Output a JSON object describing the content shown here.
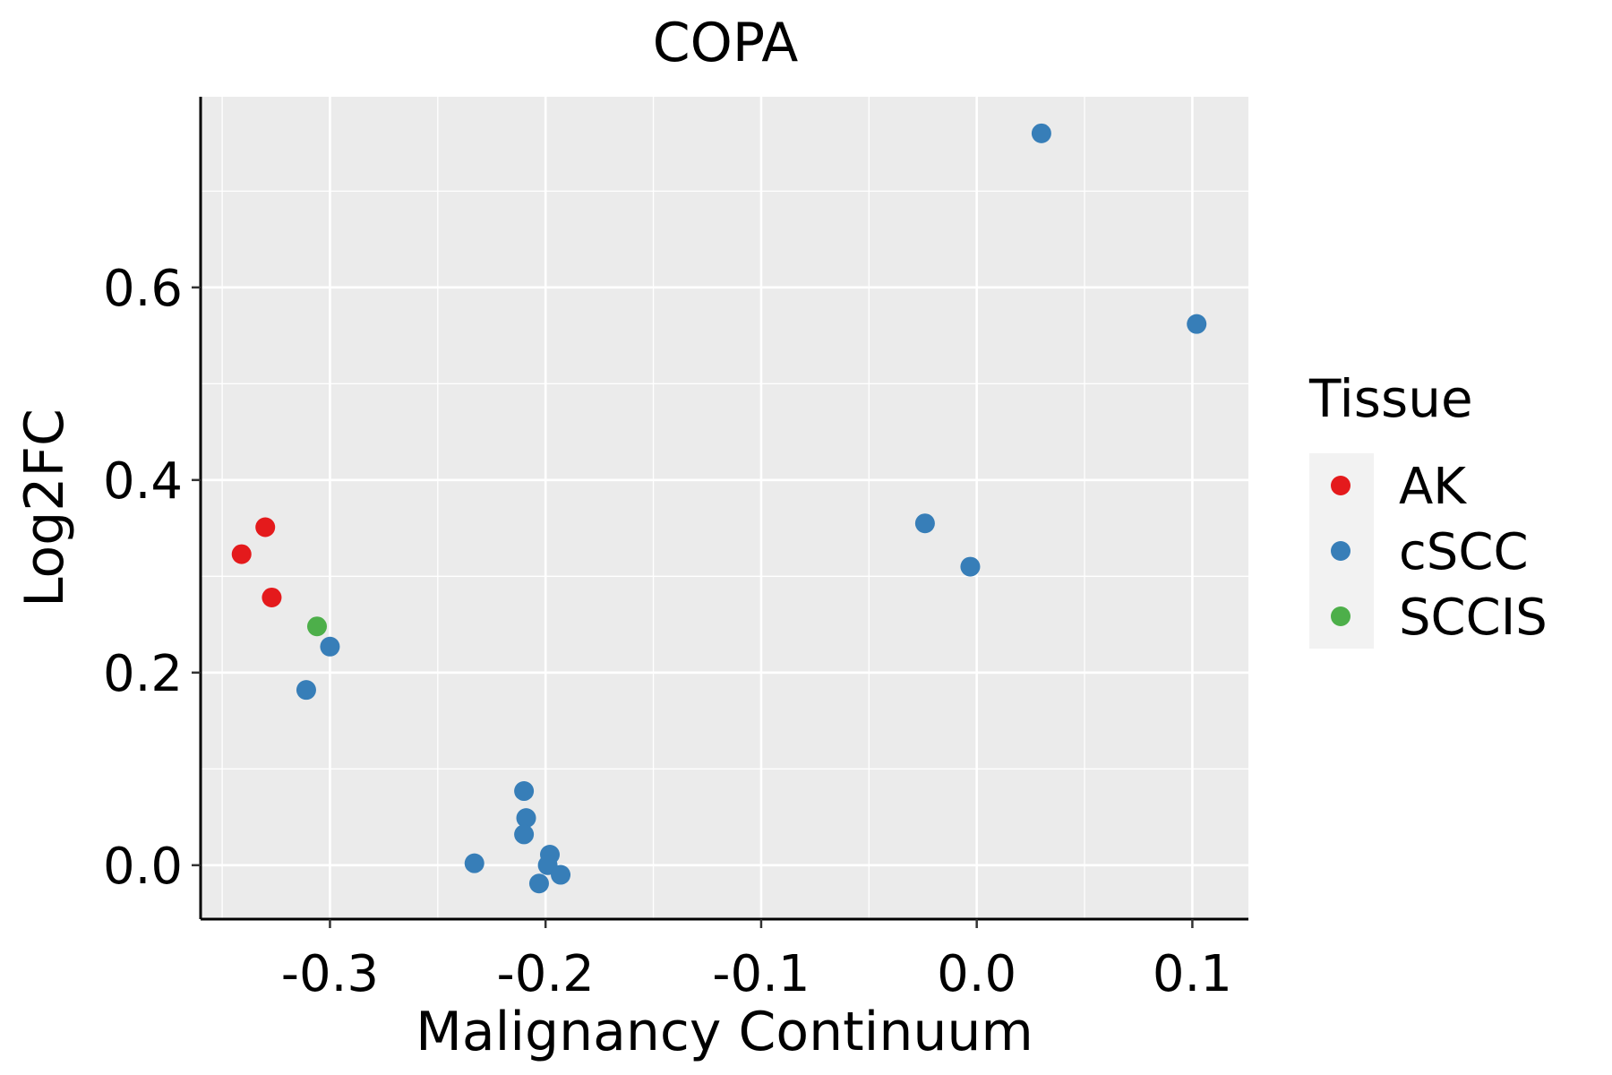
{
  "chart_data": {
    "type": "scatter",
    "title": "COPA",
    "xlabel": "Malignancy Continuum",
    "ylabel": "Log2FC",
    "xlim": [
      -0.36,
      0.126
    ],
    "ylim": [
      -0.056,
      0.798
    ],
    "x_ticks": [
      -0.3,
      -0.2,
      -0.1,
      0.0,
      0.1
    ],
    "x_tick_labels": [
      "-0.3",
      "-0.2",
      "-0.1",
      "0.0",
      "0.1"
    ],
    "y_ticks": [
      0.0,
      0.2,
      0.4,
      0.6
    ],
    "y_tick_labels": [
      "0.0",
      "0.2",
      "0.4",
      "0.6"
    ],
    "grid": true,
    "legend": {
      "title": "Tissue",
      "position": "right",
      "entries": [
        {
          "label": "AK",
          "color": "#E41A1C"
        },
        {
          "label": "cSCC",
          "color": "#377EB8"
        },
        {
          "label": "SCCIS",
          "color": "#4DAF4A"
        }
      ]
    },
    "series": [
      {
        "name": "AK",
        "color": "#E41A1C",
        "points": [
          {
            "x": -0.341,
            "y": 0.323
          },
          {
            "x": -0.33,
            "y": 0.351
          },
          {
            "x": -0.327,
            "y": 0.278
          }
        ]
      },
      {
        "name": "SCCIS",
        "color": "#4DAF4A",
        "points": [
          {
            "x": -0.306,
            "y": 0.248
          }
        ]
      },
      {
        "name": "cSCC",
        "color": "#377EB8",
        "points": [
          {
            "x": -0.3,
            "y": 0.227
          },
          {
            "x": -0.311,
            "y": 0.182
          },
          {
            "x": -0.233,
            "y": 0.002
          },
          {
            "x": -0.21,
            "y": 0.077
          },
          {
            "x": -0.209,
            "y": 0.049
          },
          {
            "x": -0.21,
            "y": 0.032
          },
          {
            "x": -0.198,
            "y": 0.011
          },
          {
            "x": -0.199,
            "y": 0.0
          },
          {
            "x": -0.193,
            "y": -0.01
          },
          {
            "x": -0.203,
            "y": -0.019
          },
          {
            "x": -0.024,
            "y": 0.355
          },
          {
            "x": -0.003,
            "y": 0.31
          },
          {
            "x": 0.03,
            "y": 0.76
          },
          {
            "x": 0.102,
            "y": 0.562
          }
        ]
      }
    ]
  },
  "colors": {
    "panel_background": "#EBEBEB",
    "grid_line": "#FFFFFF",
    "legend_key_background": "#F2F2F2",
    "axis_line": "#000000"
  }
}
